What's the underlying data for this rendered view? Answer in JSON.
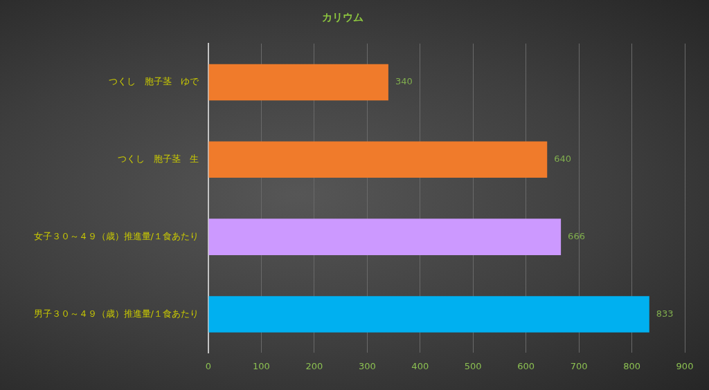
{
  "chart_data": {
    "type": "bar",
    "orientation": "horizontal",
    "title": "カリウム",
    "categories": [
      "つくし　胞子茎　ゆで",
      "つくし　胞子茎　生",
      "女子３０～４９（歳）推進量/１食あたり",
      "男子３０～４９（歳）推進量/１食あたり"
    ],
    "values": [
      340,
      640,
      666,
      833
    ],
    "colors": [
      "#f07b2b",
      "#f07b2b",
      "#cc99ff",
      "#00b0f0"
    ],
    "xlim": [
      0,
      900
    ],
    "xticks": [
      0,
      100,
      200,
      300,
      400,
      500,
      600,
      700,
      800,
      900
    ],
    "grid": "x",
    "data_labels": true
  }
}
